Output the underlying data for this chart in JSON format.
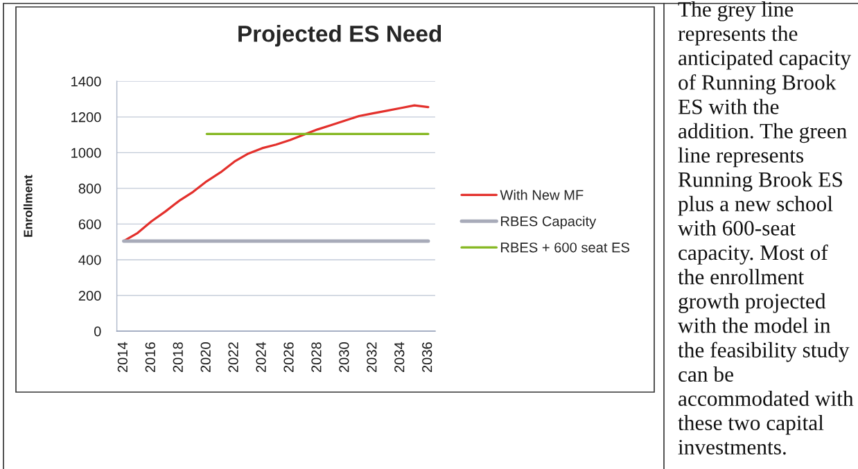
{
  "chart_data": {
    "type": "line",
    "title": "Projected ES Need",
    "ylabel": "Enrollment",
    "series": [
      {
        "name": "With New MF",
        "color": "#e3302c",
        "x": [
          2014,
          2015,
          2016,
          2017,
          2018,
          2019,
          2020,
          2021,
          2022,
          2023,
          2024,
          2025,
          2026,
          2027,
          2028,
          2029,
          2030,
          2031,
          2032,
          2033,
          2034,
          2035,
          2036
        ],
        "values": [
          505,
          550,
          615,
          670,
          730,
          780,
          840,
          890,
          950,
          995,
          1025,
          1045,
          1070,
          1100,
          1130,
          1155,
          1180,
          1205,
          1220,
          1235,
          1250,
          1265,
          1255
        ]
      },
      {
        "name": "RBES Capacity",
        "color": "#a8abb9",
        "x": [
          2014,
          2036
        ],
        "values": [
          505,
          505
        ]
      },
      {
        "name": "RBES + 600 seat ES",
        "color": "#84b71f",
        "x": [
          2020,
          2036
        ],
        "values": [
          1105,
          1105
        ]
      }
    ],
    "xlim": [
      2013.5,
      2036.5
    ],
    "xticks": [
      2014,
      2016,
      2018,
      2020,
      2022,
      2024,
      2026,
      2028,
      2030,
      2032,
      2034,
      2036
    ],
    "ylim": [
      0,
      1400
    ],
    "yticks": [
      0,
      200,
      400,
      600,
      800,
      1000,
      1200,
      1400
    ],
    "grid": "y",
    "legend": "right",
    "line_style": "solid",
    "annotations": [
      "The grey line represents the anticipated capacity of Running Brook ES with the addition. The green line represents Running Brook ES plus a new school with 600-seat capacity. Most of the enrollment growth projected with the model in the feasibility study can be accommodated with these two capital investments."
    ]
  }
}
